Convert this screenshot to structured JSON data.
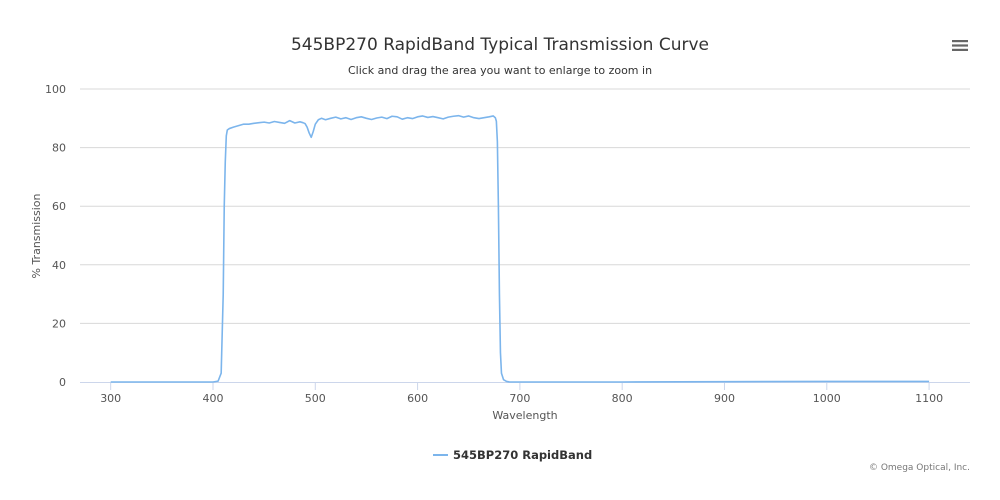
{
  "chart_data": {
    "type": "line",
    "title": "545BP270 RapidBand Typical Transmission Curve",
    "subtitle": "Click and drag the area you want to enlarge to zoom in",
    "xlabel": "Wavelength",
    "ylabel": "% Transmission",
    "xlim": [
      270,
      1140
    ],
    "ylim": [
      0,
      100
    ],
    "xticks": [
      300,
      400,
      500,
      600,
      700,
      800,
      900,
      1000,
      1100
    ],
    "yticks": [
      0,
      20,
      40,
      60,
      80,
      100
    ],
    "grid": "horizontal",
    "legend": "bottom-center",
    "series": [
      {
        "name": "545BP270 RapidBand",
        "color": "#7cb5ec",
        "x": [
          300,
          400,
          405,
          408,
          410,
          411,
          412,
          413,
          414,
          416,
          420,
          425,
          430,
          435,
          440,
          445,
          450,
          455,
          460,
          465,
          470,
          475,
          480,
          485,
          488,
          490,
          492,
          494,
          496,
          498,
          500,
          503,
          506,
          510,
          515,
          520,
          525,
          530,
          535,
          540,
          545,
          550,
          555,
          560,
          565,
          570,
          575,
          580,
          585,
          590,
          595,
          600,
          605,
          610,
          615,
          620,
          625,
          630,
          635,
          640,
          645,
          650,
          655,
          660,
          665,
          670,
          674,
          676,
          677,
          678,
          679,
          680,
          681,
          682,
          684,
          687,
          690,
          700,
          800,
          900,
          1000,
          1100
        ],
        "y": [
          0,
          0,
          0.3,
          3,
          30,
          60,
          75,
          84,
          86,
          86.5,
          87,
          87.5,
          88,
          88,
          88.3,
          88.5,
          88.7,
          88.4,
          88.9,
          88.6,
          88.3,
          89.2,
          88.4,
          88.8,
          88.5,
          88.2,
          87,
          85,
          83.5,
          85.5,
          88,
          89.5,
          90,
          89.5,
          90,
          90.4,
          89.8,
          90.2,
          89.6,
          90.2,
          90.5,
          90,
          89.6,
          90.1,
          90.4,
          89.9,
          90.7,
          90.5,
          89.7,
          90.2,
          89.9,
          90.5,
          90.8,
          90.3,
          90.6,
          90.2,
          89.8,
          90.4,
          90.7,
          90.9,
          90.4,
          90.8,
          90.2,
          89.9,
          90.2,
          90.5,
          90.8,
          90.2,
          89,
          82,
          60,
          30,
          10,
          3,
          0.8,
          0.2,
          0,
          0,
          0,
          0.1,
          0.2,
          0.2
        ]
      }
    ]
  },
  "credits": "© Omega Optical, Inc.",
  "icons": {
    "menu": "hamburger-menu-icon"
  }
}
